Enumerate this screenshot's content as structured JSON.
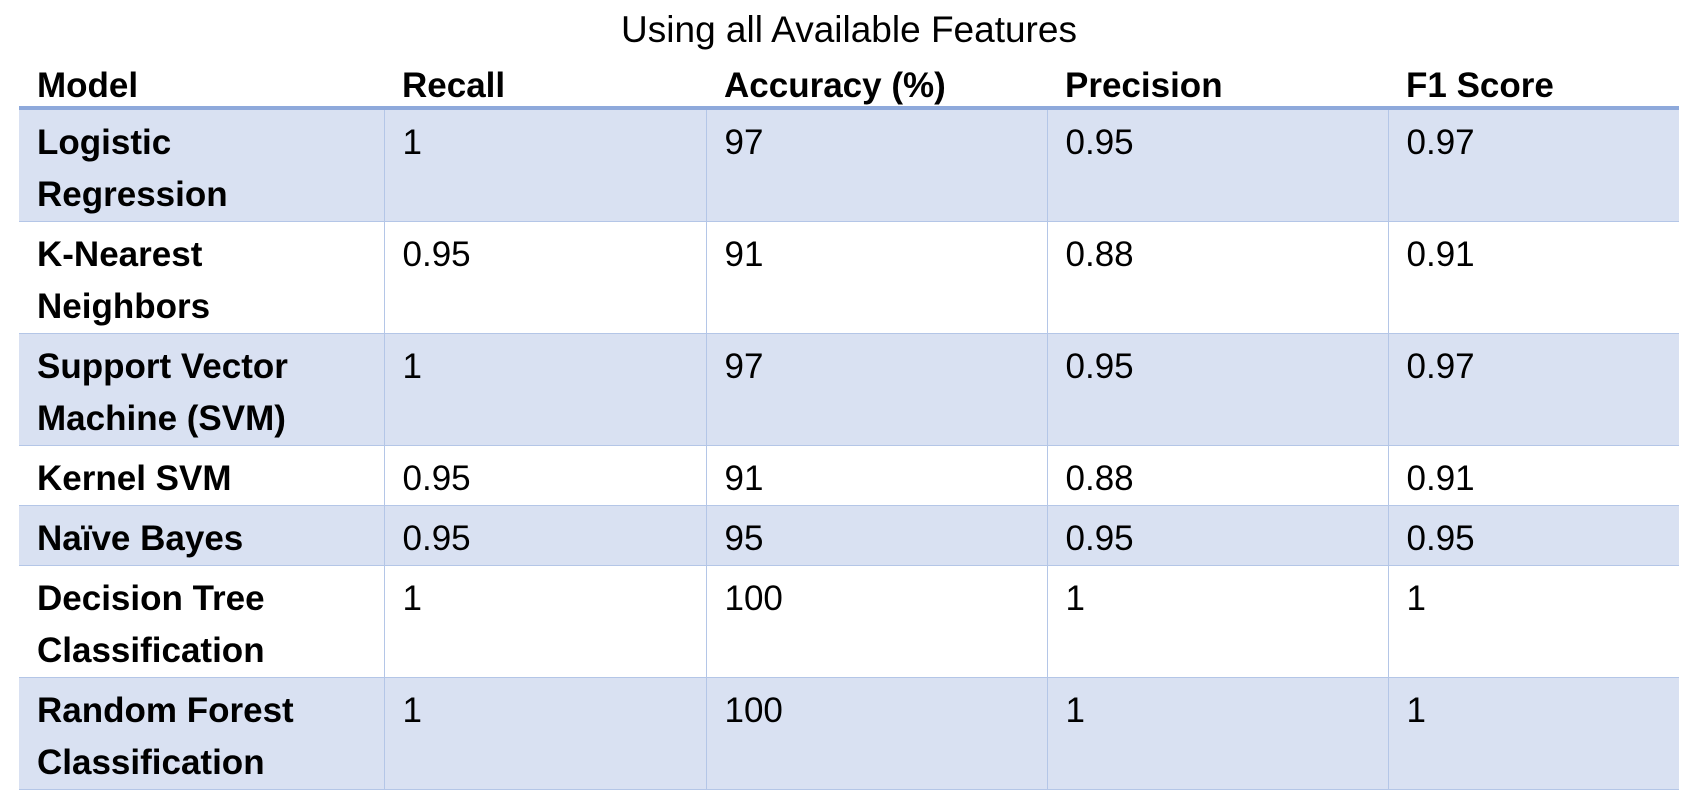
{
  "title": "Using all Available Features",
  "table": {
    "headers": [
      "Model",
      "Recall",
      "Accuracy (%)",
      "Precision",
      "F1 Score"
    ],
    "rows": [
      {
        "model": [
          "Logistic",
          "Regression"
        ],
        "recall": "1",
        "accuracy": "97",
        "precision": "0.95",
        "f1": "0.97"
      },
      {
        "model": [
          "K-Nearest",
          "Neighbors"
        ],
        "recall": "0.95",
        "accuracy": "91",
        "precision": "0.88",
        "f1": "0.91"
      },
      {
        "model": [
          "Support Vector",
          "Machine (SVM)"
        ],
        "recall": "1",
        "accuracy": "97",
        "precision": "0.95",
        "f1": "0.97"
      },
      {
        "model": [
          "Kernel SVM"
        ],
        "recall": "0.95",
        "accuracy": "91",
        "precision": "0.88",
        "f1": "0.91"
      },
      {
        "model": [
          "Naïve Bayes"
        ],
        "recall": "0.95",
        "accuracy": "95",
        "precision": "0.95",
        "f1": "0.95"
      },
      {
        "model": [
          "Decision Tree",
          "Classification"
        ],
        "recall": "1",
        "accuracy": "100",
        "precision": "1",
        "f1": "1"
      },
      {
        "model": [
          "Random Forest",
          "Classification"
        ],
        "recall": "1",
        "accuracy": "100",
        "precision": "1",
        "f1": "1"
      }
    ]
  },
  "colors": {
    "header_rule": "#8ea9db",
    "band": "#d9e1f2",
    "grid": "#b4c6e7"
  }
}
